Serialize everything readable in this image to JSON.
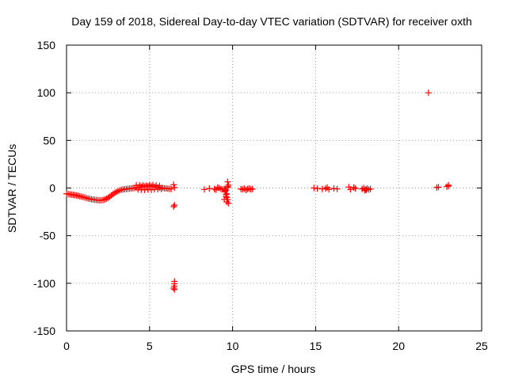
{
  "chart_data": {
    "type": "scatter",
    "title": "Day 159 of 2018, Sidereal Day-to-day VTEC variation (SDTVAR) for receiver oxth",
    "xlabel": "GPS time / hours",
    "ylabel": "SDTVAR / TECUs",
    "xlim": [
      0,
      25
    ],
    "ylim": [
      -150,
      150
    ],
    "xticks": [
      0,
      5,
      10,
      15,
      20,
      25
    ],
    "yticks": [
      -150,
      -100,
      -50,
      0,
      50,
      100,
      150
    ],
    "grid": true,
    "marker": "+",
    "series": [
      {
        "name": "SDTVAR",
        "color": "#ff0000",
        "points": [
          [
            0.0,
            -6.0
          ],
          [
            0.1,
            -6.3
          ],
          [
            0.2,
            -6.6
          ],
          [
            0.3,
            -6.9
          ],
          [
            0.4,
            -7.2
          ],
          [
            0.5,
            -7.5
          ],
          [
            0.6,
            -7.8
          ],
          [
            0.7,
            -8.2
          ],
          [
            0.8,
            -8.6
          ],
          [
            0.9,
            -9.0
          ],
          [
            1.0,
            -9.5
          ],
          [
            1.1,
            -10.0
          ],
          [
            1.2,
            -10.5
          ],
          [
            1.3,
            -11.0
          ],
          [
            1.4,
            -11.4
          ],
          [
            1.5,
            -11.8
          ],
          [
            1.6,
            -12.1
          ],
          [
            1.7,
            -12.4
          ],
          [
            1.8,
            -12.6
          ],
          [
            1.9,
            -12.8
          ],
          [
            2.0,
            -12.9
          ],
          [
            2.1,
            -12.8
          ],
          [
            2.2,
            -12.5
          ],
          [
            2.3,
            -12.0
          ],
          [
            2.4,
            -11.2
          ],
          [
            2.5,
            -10.2
          ],
          [
            2.6,
            -9.0
          ],
          [
            2.7,
            -7.7
          ],
          [
            2.8,
            -6.4
          ],
          [
            2.9,
            -5.2
          ],
          [
            3.0,
            -4.1
          ],
          [
            3.1,
            -3.2
          ],
          [
            3.2,
            -2.5
          ],
          [
            3.3,
            -1.9
          ],
          [
            3.4,
            -1.5
          ],
          [
            3.5,
            -1.2
          ],
          [
            3.6,
            -1.0
          ],
          [
            3.7,
            -0.8
          ],
          [
            3.8,
            -0.6
          ],
          [
            3.9,
            -0.4
          ],
          [
            4.0,
            -0.2
          ],
          [
            4.1,
            0.0
          ],
          [
            4.2,
            0.3
          ],
          [
            4.3,
            0.6
          ],
          [
            4.4,
            0.9
          ],
          [
            4.5,
            1.2
          ],
          [
            4.6,
            1.4
          ],
          [
            4.7,
            1.6
          ],
          [
            4.8,
            1.8
          ],
          [
            4.9,
            1.9
          ],
          [
            5.0,
            2.0
          ],
          [
            5.1,
            1.8
          ],
          [
            5.2,
            1.6
          ],
          [
            5.3,
            1.3
          ],
          [
            5.4,
            1.0
          ],
          [
            5.5,
            0.7
          ],
          [
            5.6,
            0.4
          ],
          [
            5.7,
            0.2
          ],
          [
            5.8,
            0.0
          ],
          [
            5.9,
            -0.2
          ],
          [
            6.0,
            -0.4
          ],
          [
            6.1,
            -0.6
          ],
          [
            6.2,
            -0.8
          ],
          [
            6.3,
            -1.0
          ],
          [
            4.2,
            2.8
          ],
          [
            4.4,
            3.0
          ],
          [
            4.6,
            2.6
          ],
          [
            4.8,
            2.4
          ],
          [
            5.0,
            2.9
          ],
          [
            5.2,
            3.1
          ],
          [
            5.4,
            2.7
          ],
          [
            5.6,
            2.2
          ],
          [
            4.3,
            -1.5
          ],
          [
            4.5,
            -1.8
          ],
          [
            4.7,
            -2.0
          ],
          [
            4.9,
            -1.6
          ],
          [
            5.1,
            -1.9
          ],
          [
            5.3,
            -1.4
          ],
          [
            5.5,
            -1.2
          ],
          [
            5.7,
            -1.0
          ],
          [
            6.45,
            3.5
          ],
          [
            6.5,
            0.5
          ],
          [
            6.5,
            -18.0
          ],
          [
            6.45,
            -19.5
          ],
          [
            6.5,
            -98.0
          ],
          [
            6.5,
            -100.5
          ],
          [
            6.5,
            -103.0
          ],
          [
            6.45,
            -105.0
          ],
          [
            6.5,
            -106.5
          ],
          [
            8.3,
            -1.5
          ],
          [
            8.6,
            -0.5
          ],
          [
            8.9,
            -1.0
          ],
          [
            9.0,
            -1.8
          ],
          [
            9.1,
            0.5
          ],
          [
            9.2,
            0.0
          ],
          [
            9.3,
            -1.0
          ],
          [
            9.4,
            -1.5
          ],
          [
            9.5,
            -1.0
          ],
          [
            9.55,
            -4.0
          ],
          [
            9.6,
            -7.0
          ],
          [
            9.6,
            -9.0
          ],
          [
            9.65,
            -10.0
          ],
          [
            9.7,
            -12.0
          ],
          [
            9.65,
            -14.5
          ],
          [
            9.75,
            -16.0
          ],
          [
            9.5,
            -12.0
          ],
          [
            9.55,
            -3.0
          ],
          [
            9.6,
            -2.0
          ],
          [
            9.7,
            0.5
          ],
          [
            9.7,
            1.5
          ],
          [
            9.75,
            3.0
          ],
          [
            9.7,
            6.5
          ],
          [
            9.65,
            -6.0
          ],
          [
            10.5,
            -1.0
          ],
          [
            10.6,
            -1.5
          ],
          [
            10.7,
            -0.5
          ],
          [
            10.8,
            -2.0
          ],
          [
            10.9,
            -1.0
          ],
          [
            11.0,
            -0.5
          ],
          [
            11.1,
            -1.5
          ],
          [
            11.2,
            -1.0
          ],
          [
            14.9,
            0.0
          ],
          [
            15.1,
            -0.5
          ],
          [
            15.4,
            -1.0
          ],
          [
            15.6,
            -0.5
          ],
          [
            15.7,
            0.5
          ],
          [
            15.8,
            -1.5
          ],
          [
            16.1,
            -0.5
          ],
          [
            16.3,
            -1.0
          ],
          [
            17.0,
            1.0
          ],
          [
            17.1,
            -1.5
          ],
          [
            17.3,
            0.5
          ],
          [
            17.4,
            -0.5
          ],
          [
            17.8,
            -1.0
          ],
          [
            17.9,
            0.0
          ],
          [
            18.0,
            -1.5
          ],
          [
            18.05,
            -2.0
          ],
          [
            18.1,
            -0.5
          ],
          [
            18.2,
            -1.5
          ],
          [
            18.3,
            -1.0
          ],
          [
            17.95,
            -2.5
          ],
          [
            21.8,
            100.0
          ],
          [
            22.3,
            0.5
          ],
          [
            22.4,
            1.0
          ],
          [
            22.9,
            1.5
          ],
          [
            23.0,
            3.0
          ],
          [
            23.0,
            2.0
          ]
        ]
      }
    ]
  }
}
